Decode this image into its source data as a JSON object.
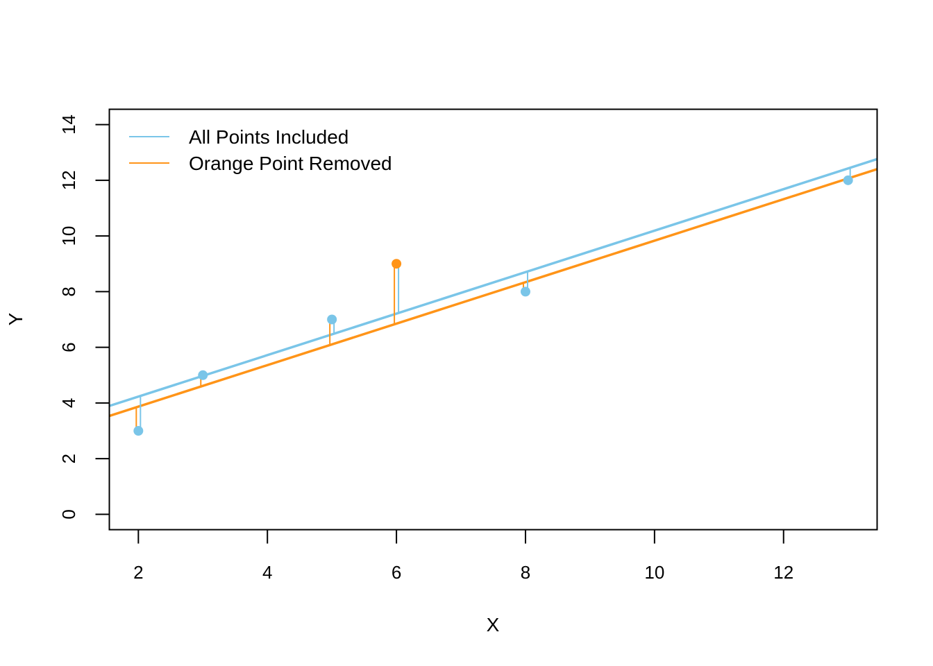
{
  "chart_data": {
    "type": "scatter",
    "xlabel": "X",
    "ylabel": "Y",
    "xlim": [
      1.55,
      13.45
    ],
    "ylim": [
      -0.55,
      14.55
    ],
    "xticks": [
      2,
      4,
      6,
      8,
      10,
      12
    ],
    "yticks": [
      0,
      2,
      4,
      6,
      8,
      10,
      12,
      14
    ],
    "grid": false,
    "legend_position": "top-left",
    "points": [
      {
        "x": 2,
        "y": 3,
        "color": "#7ac5e8"
      },
      {
        "x": 3,
        "y": 5,
        "color": "#7ac5e8"
      },
      {
        "x": 5,
        "y": 7,
        "color": "#7ac5e8"
      },
      {
        "x": 6,
        "y": 9,
        "color": "#ff9418"
      },
      {
        "x": 8,
        "y": 8,
        "color": "#7ac5e8"
      },
      {
        "x": 13,
        "y": 12,
        "color": "#7ac5e8"
      }
    ],
    "series": [
      {
        "name": "All Points Included",
        "color": "#7ac5e8",
        "intercept": 2.74,
        "slope": 0.745
      },
      {
        "name": "Orange Point Removed",
        "color": "#ff9418",
        "intercept": 2.38,
        "slope": 0.745
      }
    ]
  }
}
